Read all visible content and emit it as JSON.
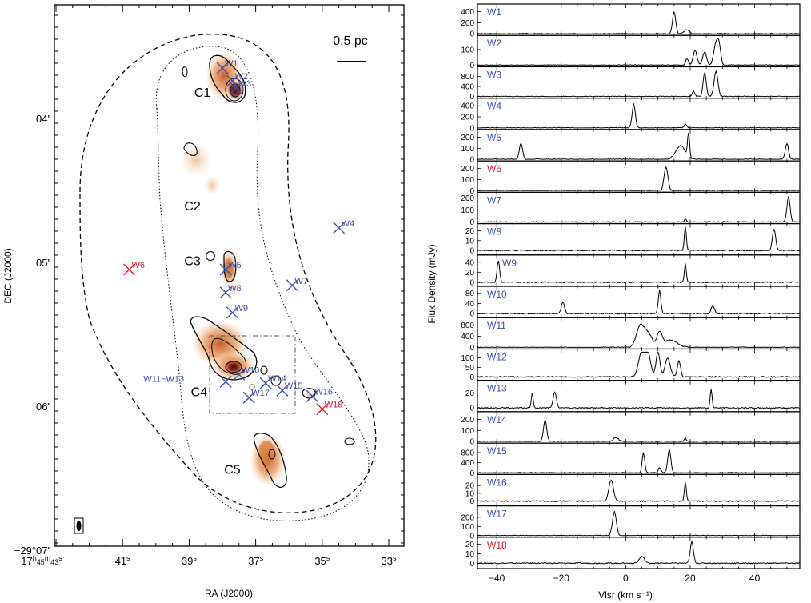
{
  "chart_data": [
    {
      "type": "map",
      "xlabel": "RA (J2000)",
      "ylabel": "DEC (J2000)",
      "x_ticks": [
        {
          "h": "17",
          "m": "45",
          "s": "43"
        },
        {
          "s": "41"
        },
        {
          "s": "39"
        },
        {
          "s": "37"
        },
        {
          "s": "35"
        },
        {
          "s": "33"
        }
      ],
      "y_ticks": [
        {
          "label": "04'",
          "arcmin": 4
        },
        {
          "label": "05'",
          "arcmin": 5
        },
        {
          "label": "06'",
          "arcmin": 6
        },
        {
          "label": "−29°07'",
          "arcmin": 7
        }
      ],
      "scale_bar": "0.5 pc",
      "clumps": [
        {
          "label": "C1",
          "ra_s": 38.6,
          "dec_arcmin": 3.85
        },
        {
          "label": "C2",
          "ra_s": 38.9,
          "dec_arcmin": 4.64
        },
        {
          "label": "C3",
          "ra_s": 38.9,
          "dec_arcmin": 5.02
        },
        {
          "label": "C4",
          "ra_s": 38.7,
          "dec_arcmin": 5.93
        },
        {
          "label": "C5",
          "ra_s": 37.7,
          "dec_arcmin": 6.47
        }
      ],
      "masers": [
        {
          "label": "W1",
          "ra_s": 38.0,
          "dec_arcmin": 3.65,
          "color": "#3b4fb0"
        },
        {
          "label": "W2",
          "ra_s": 37.7,
          "dec_arcmin": 3.74,
          "color": "#3b4fb0"
        },
        {
          "label": "W3",
          "ra_s": 37.6,
          "dec_arcmin": 3.79,
          "color": "#3b4fb0"
        },
        {
          "label": "W4",
          "ra_s": 34.5,
          "dec_arcmin": 4.76,
          "color": "#3b4fb0"
        },
        {
          "label": "W5",
          "ra_s": 37.9,
          "dec_arcmin": 5.05,
          "color": "#3b4fb0"
        },
        {
          "label": "W6",
          "ra_s": 40.8,
          "dec_arcmin": 5.05,
          "color": "#e0202a"
        },
        {
          "label": "W7",
          "ra_s": 35.9,
          "dec_arcmin": 5.16,
          "color": "#3b4fb0"
        },
        {
          "label": "W8",
          "ra_s": 37.9,
          "dec_arcmin": 5.21,
          "color": "#3b4fb0"
        },
        {
          "label": "W9",
          "ra_s": 37.7,
          "dec_arcmin": 5.35,
          "color": "#3b4fb0"
        },
        {
          "label": "W10",
          "ra_s": 37.5,
          "dec_arcmin": 5.78,
          "color": "#3b4fb0"
        },
        {
          "label": "W11−W13",
          "ra_s": 37.9,
          "dec_arcmin": 5.83,
          "color": "#3b4fb0"
        },
        {
          "label": "W14",
          "ra_s": 36.7,
          "dec_arcmin": 5.84,
          "color": "#3b4fb0"
        },
        {
          "label": "W15",
          "ra_s": 36.2,
          "dec_arcmin": 5.89,
          "color": "#3b4fb0"
        },
        {
          "label": "W16",
          "ra_s": 35.3,
          "dec_arcmin": 5.93,
          "color": "#3b4fb0"
        },
        {
          "label": "W17",
          "ra_s": 37.2,
          "dec_arcmin": 5.94,
          "color": "#3b4fb0"
        },
        {
          "label": "W18",
          "ra_s": 35.0,
          "dec_arcmin": 6.02,
          "color": "#e0202a"
        }
      ]
    },
    {
      "type": "line",
      "ylabel": "Flux Density  (mJy)",
      "xlabel": "Vlsr  (km s⁻¹)",
      "xlim": [
        -46,
        54
      ],
      "x_ticks": [
        "−40",
        "−20",
        "0",
        "20",
        "40"
      ],
      "noise": 0.02,
      "series": [
        {
          "name": "W1",
          "color": "#3b4fb0",
          "ylim": [
            0,
            480
          ],
          "y_ticks": [
            "0",
            "200",
            "400"
          ],
          "peaks": [
            [
              15,
              0.82,
              0.5
            ],
            [
              19,
              0.15,
              0.8
            ]
          ]
        },
        {
          "name": "W2",
          "color": "#3b4fb0",
          "ylim": [
            0,
            170
          ],
          "y_ticks": [
            "0",
            "100"
          ],
          "peaks": [
            [
              19,
              0.25,
              0.4
            ],
            [
              21.5,
              0.55,
              0.6
            ],
            [
              24.5,
              0.5,
              0.6
            ],
            [
              28,
              0.8,
              0.7
            ],
            [
              29,
              0.6,
              0.5
            ]
          ]
        },
        {
          "name": "W3",
          "color": "#3b4fb0",
          "ylim": [
            0,
            1050
          ],
          "y_ticks": [
            "0",
            "400",
            "800"
          ],
          "peaks": [
            [
              21,
              0.2,
              0.4
            ],
            [
              24.5,
              0.88,
              0.5
            ],
            [
              28,
              0.95,
              0.6
            ]
          ]
        },
        {
          "name": "W4",
          "color": "#3b4fb0",
          "ylim": [
            0,
            480
          ],
          "y_ticks": [
            "0",
            "200",
            "400"
          ],
          "peaks": [
            [
              2.5,
              0.88,
              0.5
            ],
            [
              18.5,
              0.15,
              0.4
            ]
          ]
        },
        {
          "name": "W5",
          "color": "#3b4fb0",
          "ylim": [
            0,
            240
          ],
          "y_ticks": [
            "0",
            "100",
            "200"
          ],
          "peaks": [
            [
              -32.5,
              0.62,
              0.5
            ],
            [
              17,
              0.5,
              1.5
            ],
            [
              19.5,
              0.95,
              0.3
            ],
            [
              50,
              0.6,
              0.5
            ]
          ]
        },
        {
          "name": "W6",
          "color": "#e0202a",
          "ylim": [
            0,
            240
          ],
          "y_ticks": [
            "0",
            "100",
            "200"
          ],
          "peaks": [
            [
              12.5,
              0.88,
              0.6
            ]
          ]
        },
        {
          "name": "W7",
          "color": "#3b4fb0",
          "ylim": [
            0,
            220
          ],
          "y_ticks": [
            "0",
            "100",
            "200"
          ],
          "peaks": [
            [
              18.5,
              0.12,
              0.3
            ],
            [
              50.5,
              0.95,
              0.5
            ]
          ]
        },
        {
          "name": "W8",
          "color": "#3b4fb0",
          "ylim": [
            -3,
            24
          ],
          "y_ticks": [
            "0",
            "10",
            "20"
          ],
          "peaks": [
            [
              18.5,
              0.95,
              0.3
            ],
            [
              46,
              0.8,
              0.5
            ]
          ]
        },
        {
          "name": "W9",
          "color": "#3b4fb0",
          "ylim": [
            -5,
            48
          ],
          "y_ticks": [
            "0",
            "20",
            "40"
          ],
          "peaks": [
            [
              -39.5,
              0.8,
              0.4
            ],
            [
              18.5,
              0.7,
              0.3
            ]
          ]
        },
        {
          "name": "W10",
          "color": "#3b4fb0",
          "ylim": [
            -10,
            95
          ],
          "y_ticks": [
            "0",
            "40",
            "80"
          ],
          "peaks": [
            [
              -19.5,
              0.42,
              0.5
            ],
            [
              10.5,
              0.88,
              0.4
            ],
            [
              27,
              0.3,
              0.5
            ]
          ]
        },
        {
          "name": "W11",
          "color": "#3b4fb0",
          "ylim": [
            0,
            950
          ],
          "y_ticks": [
            "0",
            "400",
            "800"
          ],
          "peaks": [
            [
              4.5,
              0.8,
              1.2
            ],
            [
              7,
              0.5,
              1.2
            ],
            [
              10.5,
              0.55,
              0.8
            ],
            [
              14,
              0.28,
              2
            ]
          ]
        },
        {
          "name": "W12",
          "color": "#3b4fb0",
          "ylim": [
            -10,
            130
          ],
          "y_ticks": [
            "0",
            "50",
            "100"
          ],
          "peaks": [
            [
              5,
              0.95,
              1
            ],
            [
              7,
              0.8,
              0.8
            ],
            [
              10,
              0.95,
              0.6
            ],
            [
              13,
              0.7,
              0.8
            ],
            [
              16.5,
              0.6,
              0.5
            ]
          ]
        },
        {
          "name": "W13",
          "color": "#3b4fb0",
          "ylim": [
            -3,
            33
          ],
          "y_ticks": [
            "0",
            "20"
          ],
          "peaks": [
            [
              -29,
              0.55,
              0.3
            ],
            [
              -22,
              0.6,
              0.5
            ],
            [
              26.5,
              0.7,
              0.3
            ]
          ]
        },
        {
          "name": "W14",
          "color": "#3b4fb0",
          "ylim": [
            0,
            240
          ],
          "y_ticks": [
            "0",
            "100",
            "200"
          ],
          "peaks": [
            [
              -25,
              0.82,
              0.5
            ],
            [
              -3,
              0.15,
              0.8
            ],
            [
              18.5,
              0.12,
              0.3
            ]
          ]
        },
        {
          "name": "W15",
          "color": "#3b4fb0",
          "ylim": [
            0,
            1050
          ],
          "y_ticks": [
            "0",
            "400",
            "800"
          ],
          "peaks": [
            [
              5.5,
              0.75,
              0.4
            ],
            [
              13.5,
              0.88,
              0.5
            ],
            [
              10.5,
              0.2,
              0.4
            ]
          ]
        },
        {
          "name": "W16",
          "color": "#3b4fb0",
          "ylim": [
            -4,
            30
          ],
          "y_ticks": [
            "0",
            "10",
            "20"
          ],
          "peaks": [
            [
              -4.5,
              0.8,
              0.7
            ],
            [
              18.5,
              0.72,
              0.3
            ]
          ]
        },
        {
          "name": "W17",
          "color": "#3b4fb0",
          "ylim": [
            0,
            290
          ],
          "y_ticks": [
            "0",
            "100",
            "200"
          ],
          "peaks": [
            [
              -3.5,
              0.9,
              0.6
            ]
          ]
        },
        {
          "name": "W18",
          "color": "#e0202a",
          "ylim": [
            -4,
            24
          ],
          "y_ticks": [
            "0",
            "10",
            "20"
          ],
          "peaks": [
            [
              5,
              0.25,
              0.8
            ],
            [
              20.5,
              0.8,
              0.5
            ]
          ]
        }
      ]
    }
  ]
}
